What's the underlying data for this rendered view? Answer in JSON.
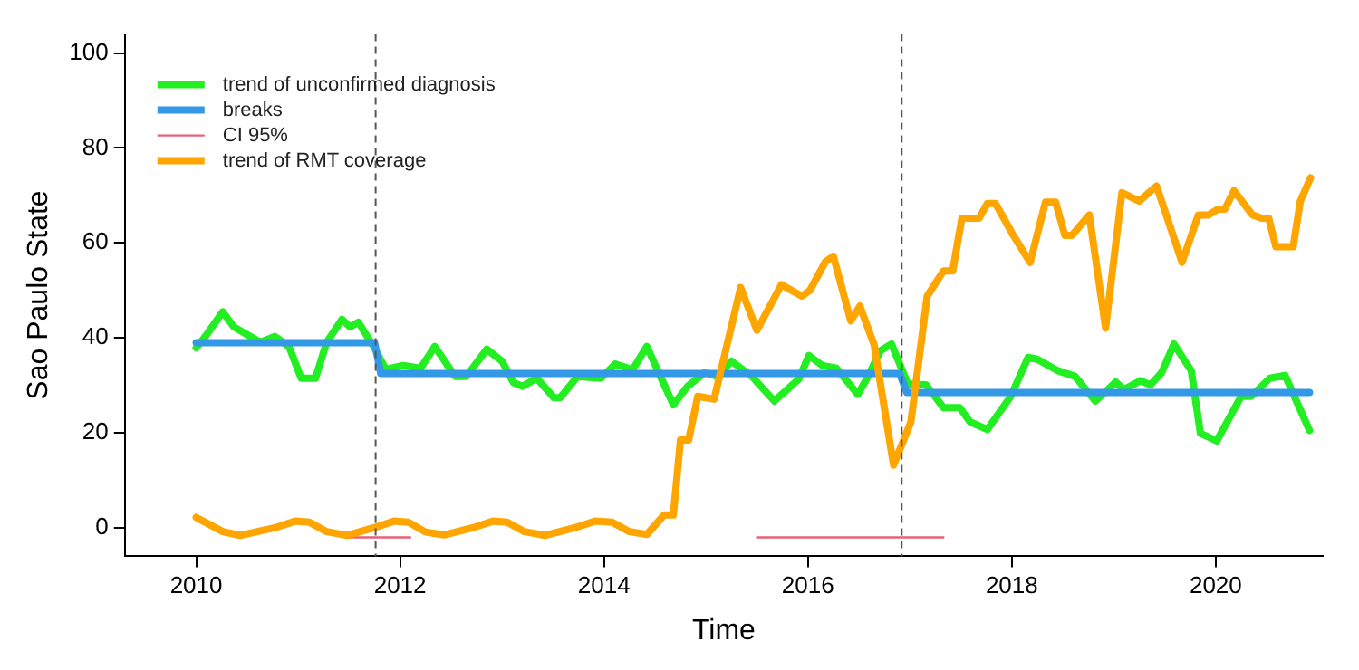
{
  "chart_data": {
    "type": "line",
    "xlabel": "Time",
    "ylabel": "Sao Paulo State",
    "xlim": [
      2009.3,
      2021.05
    ],
    "xticks": [
      2010,
      2012,
      2014,
      2016,
      2018,
      2020
    ],
    "ylim": [
      -6,
      104
    ],
    "yticks": [
      0,
      20,
      40,
      60,
      80,
      100
    ],
    "grid": false,
    "legend": "top left",
    "line_style": "solid",
    "marker": "none",
    "ref_lines": [
      {
        "axis": "x",
        "value": 2011.76,
        "color": "#555555",
        "line_style": "dashed"
      },
      {
        "axis": "x",
        "value": 2016.92,
        "color": "#555555",
        "line_style": "dashed"
      }
    ],
    "series": [
      {
        "name": "trend of unconfirmed diagnosis",
        "color": "#22ee22",
        "x": [
          2010.0,
          2010.09,
          2010.26,
          2010.37,
          2010.63,
          2010.77,
          2010.91,
          2011.03,
          2011.17,
          2011.28,
          2011.43,
          2011.51,
          2011.59,
          2011.74,
          2011.86,
          2012.03,
          2012.2,
          2012.34,
          2012.54,
          2012.65,
          2012.85,
          2013.0,
          2013.11,
          2013.2,
          2013.34,
          2013.51,
          2013.57,
          2013.74,
          2013.97,
          2014.11,
          2014.28,
          2014.42,
          2014.54,
          2014.68,
          2014.82,
          2014.99,
          2015.11,
          2015.25,
          2015.45,
          2015.67,
          2015.91,
          2016.01,
          2016.14,
          2016.28,
          2016.49,
          2016.59,
          2016.71,
          2016.82,
          2016.98,
          2017.16,
          2017.33,
          2017.49,
          2017.59,
          2017.76,
          2017.99,
          2018.16,
          2018.25,
          2018.45,
          2018.62,
          2018.82,
          2019.02,
          2019.1,
          2019.26,
          2019.36,
          2019.47,
          2019.59,
          2019.76,
          2019.85,
          2020.01,
          2020.25,
          2020.35,
          2020.53,
          2020.68,
          2020.92
        ],
        "values": [
          37.9,
          40.3,
          45.5,
          42.3,
          39.1,
          40.3,
          38.2,
          31.5,
          31.5,
          39.1,
          43.9,
          42.3,
          43.3,
          38.2,
          33.4,
          34.2,
          33.6,
          38.2,
          31.9,
          31.9,
          37.6,
          35.1,
          30.6,
          29.8,
          31.5,
          27.4,
          27.4,
          31.9,
          31.5,
          34.5,
          33.3,
          38.2,
          32.5,
          25.9,
          29.8,
          32.7,
          31.9,
          35.1,
          31.9,
          26.7,
          31.3,
          36.3,
          34.2,
          33.6,
          28.1,
          31.9,
          37.3,
          38.7,
          30.3,
          30.1,
          25.3,
          25.3,
          22.3,
          20.7,
          27.7,
          35.9,
          35.5,
          33.1,
          31.9,
          26.7,
          30.7,
          29.1,
          31.0,
          30.1,
          32.7,
          38.7,
          33.1,
          19.9,
          18.3,
          27.7,
          27.7,
          31.5,
          32.1,
          20.5
        ]
      },
      {
        "name": "breaks",
        "color": "#3399e6",
        "x": [
          2010.0,
          2011.75,
          2011.81,
          2016.9,
          2016.97,
          2020.92
        ],
        "values": [
          39,
          39,
          32.5,
          32.5,
          28.5,
          28.5
        ]
      },
      {
        "name": "CI 95%",
        "color": "#e8607a",
        "x": [
          2011.5,
          2012.1,
          2014.0,
          2015.5,
          2017.33
        ],
        "values": [
          -2,
          -2,
          null,
          -2,
          -2
        ]
      },
      {
        "name": "trend of RMT coverage",
        "color": "#ffa500",
        "x": [
          2010.0,
          2010.26,
          2010.43,
          2010.77,
          2010.97,
          2011.11,
          2011.28,
          2011.48,
          2011.74,
          2011.94,
          2012.08,
          2012.25,
          2012.43,
          2012.71,
          2012.91,
          2013.05,
          2013.22,
          2013.42,
          2013.71,
          2013.91,
          2014.08,
          2014.25,
          2014.42,
          2014.59,
          2014.68,
          2014.75,
          2014.83,
          2014.92,
          2015.08,
          2015.34,
          2015.5,
          2015.74,
          2015.94,
          2016.02,
          2016.17,
          2016.25,
          2016.42,
          2016.51,
          2016.65,
          2016.84,
          2017.01,
          2017.17,
          2017.33,
          2017.42,
          2017.51,
          2017.68,
          2017.76,
          2017.84,
          2018.02,
          2018.18,
          2018.33,
          2018.43,
          2018.52,
          2018.59,
          2018.76,
          2018.92,
          2019.08,
          2019.25,
          2019.42,
          2019.67,
          2019.83,
          2019.93,
          2020.02,
          2020.09,
          2020.18,
          2020.36,
          2020.45,
          2020.52,
          2020.59,
          2020.76,
          2020.83,
          2020.93
        ],
        "values": [
          2.2,
          -0.8,
          -1.6,
          0,
          1.4,
          1.2,
          -0.8,
          -1.6,
          0,
          1.4,
          1.2,
          -0.9,
          -1.5,
          0,
          1.4,
          1.2,
          -0.8,
          -1.6,
          0,
          1.4,
          1.2,
          -0.8,
          -1.4,
          2.7,
          2.7,
          18.5,
          18.5,
          27.7,
          27.1,
          50.6,
          41.6,
          51.2,
          48.8,
          50.0,
          56.0,
          57.2,
          43.6,
          46.7,
          38.5,
          13.2,
          22.3,
          48.8,
          54.1,
          54.1,
          65.2,
          65.2,
          68.3,
          68.3,
          61.4,
          55.9,
          68.6,
          68.6,
          61.6,
          61.6,
          65.9,
          42.1,
          70.6,
          68.8,
          72.0,
          55.9,
          65.9,
          65.9,
          67.1,
          67.1,
          71.0,
          65.9,
          65.2,
          65.2,
          59.2,
          59.2,
          68.8,
          73.7
        ]
      }
    ]
  }
}
